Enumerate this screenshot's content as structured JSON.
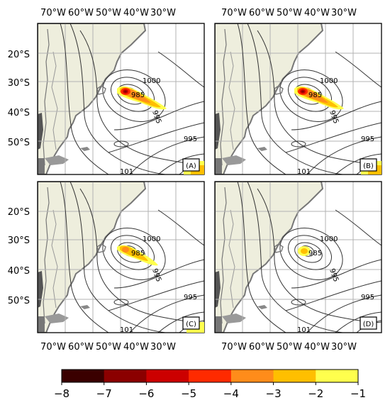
{
  "lon_labels": [
    "70°W",
    "60°W",
    "50°W",
    "40°W",
    "30°W"
  ],
  "lat_labels": [
    "20°S",
    "30°S",
    "40°S",
    "50°S"
  ],
  "panels": [
    {
      "label": "(A)",
      "isobars": [
        "1000",
        "985",
        "995",
        "995",
        "101"
      ],
      "peak_anomaly": -7
    },
    {
      "label": "(B)",
      "isobars": [
        "1000",
        "985",
        "995",
        "995",
        "101"
      ],
      "peak_anomaly": -7
    },
    {
      "label": "(C)",
      "isobars": [
        "1000",
        "985",
        "995",
        "995",
        "101"
      ],
      "peak_anomaly": -5
    },
    {
      "label": "(D)",
      "isobars": [
        "1000",
        "985",
        "995",
        "995",
        "101"
      ],
      "peak_anomaly": -3
    }
  ],
  "colorbar": {
    "ticks": [
      "−8",
      "−7",
      "−6",
      "−5",
      "−4",
      "−3",
      "−2",
      "−1"
    ],
    "colors": [
      "#3a0000",
      "#8b0000",
      "#cc0000",
      "#ff2a00",
      "#ff8c1a",
      "#ffbf00",
      "#ffff4d",
      "#ffffd4"
    ]
  },
  "colors": {
    "land": "#eeeedd",
    "ocean": "#ffffff",
    "grid": "#b3b3b3",
    "isobar": "#333333",
    "coast": "#777777"
  }
}
